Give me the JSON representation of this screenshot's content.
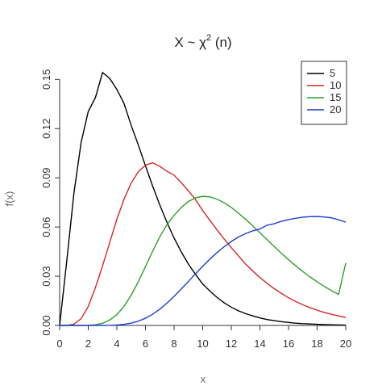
{
  "chart_data": {
    "type": "line",
    "title": {
      "prefix": "X ~ ",
      "symbol": "χ",
      "superscript": "2",
      "suffix": " (n)"
    },
    "xlabel": "x",
    "ylabel": "f(x)",
    "xlim": [
      0,
      20
    ],
    "ylim": [
      0,
      0.16
    ],
    "xticks": [
      0,
      2,
      4,
      6,
      8,
      10,
      12,
      14,
      16,
      18,
      20
    ],
    "yticks": [
      "0.00",
      "0.03",
      "0.06",
      "0.09",
      "0.12",
      "0.15"
    ],
    "grid": false,
    "legend_position": "top-right",
    "x": [
      0,
      0.5,
      1,
      1.5,
      2,
      2.5,
      3,
      3.5,
      4,
      4.5,
      5,
      5.5,
      6,
      6.5,
      7,
      7.5,
      8,
      8.5,
      9,
      9.5,
      10,
      10.5,
      11,
      11.5,
      12,
      12.5,
      13,
      13.5,
      14,
      14.5,
      15,
      15.5,
      16,
      16.5,
      17,
      17.5,
      18,
      18.5,
      19,
      19.5,
      20
    ],
    "series": [
      {
        "name": "5",
        "color": "#000000",
        "values": [
          0,
          0.0394,
          0.0807,
          0.1115,
          0.1304,
          0.1389,
          0.1542,
          0.1506,
          0.1439,
          0.1353,
          0.122,
          0.11,
          0.0973,
          0.085,
          0.0735,
          0.0629,
          0.0533,
          0.0449,
          0.0374,
          0.0311,
          0.0253,
          0.021,
          0.0171,
          0.0138,
          0.0111,
          0.0089,
          0.0072,
          0.0058,
          0.0046,
          0.0036,
          0.0029,
          0.0023,
          0.0018,
          0.0014,
          0.0011,
          0.0009,
          0.0007,
          0.0005,
          0.0004,
          0.0003,
          0.0002
        ]
      },
      {
        "name": "10",
        "color": "#d62728",
        "values": [
          0,
          0.0,
          0.0008,
          0.0041,
          0.0115,
          0.0231,
          0.0363,
          0.0505,
          0.0648,
          0.0769,
          0.0868,
          0.0937,
          0.0977,
          0.0992,
          0.097,
          0.094,
          0.0916,
          0.087,
          0.0821,
          0.0767,
          0.07,
          0.0641,
          0.0583,
          0.0527,
          0.0474,
          0.0424,
          0.0374,
          0.0332,
          0.0292,
          0.0257,
          0.0224,
          0.0195,
          0.0169,
          0.0146,
          0.0126,
          0.0108,
          0.0093,
          0.0079,
          0.0068,
          0.0058,
          0.0049
        ]
      },
      {
        "name": "15",
        "color": "#2ca02c",
        "values": [
          0,
          0.0,
          0.0,
          0.0,
          0.0001,
          0.0004,
          0.0013,
          0.0033,
          0.0066,
          0.0116,
          0.0184,
          0.0267,
          0.0359,
          0.0452,
          0.054,
          0.0614,
          0.0671,
          0.0719,
          0.0756,
          0.0778,
          0.0787,
          0.0784,
          0.077,
          0.0748,
          0.0719,
          0.0685,
          0.0647,
          0.0607,
          0.0565,
          0.0523,
          0.0481,
          0.044,
          0.0401,
          0.0364,
          0.0329,
          0.0296,
          0.0266,
          0.0238,
          0.0212,
          0.0189,
          0.038
        ]
      },
      {
        "name": "20",
        "color": "#1f3fd6",
        "values": [
          0,
          0.0,
          0.0,
          0.0,
          0.0,
          0.0,
          0.0,
          0.0001,
          0.0003,
          0.0007,
          0.0014,
          0.0026,
          0.0044,
          0.0068,
          0.0099,
          0.0136,
          0.0177,
          0.0222,
          0.0268,
          0.0315,
          0.0361,
          0.0404,
          0.0444,
          0.048,
          0.0512,
          0.0539,
          0.056,
          0.0577,
          0.0588,
          0.0611,
          0.062,
          0.0635,
          0.0645,
          0.0653,
          0.066,
          0.0663,
          0.0664,
          0.0661,
          0.0656,
          0.0644,
          0.063
        ]
      }
    ]
  }
}
